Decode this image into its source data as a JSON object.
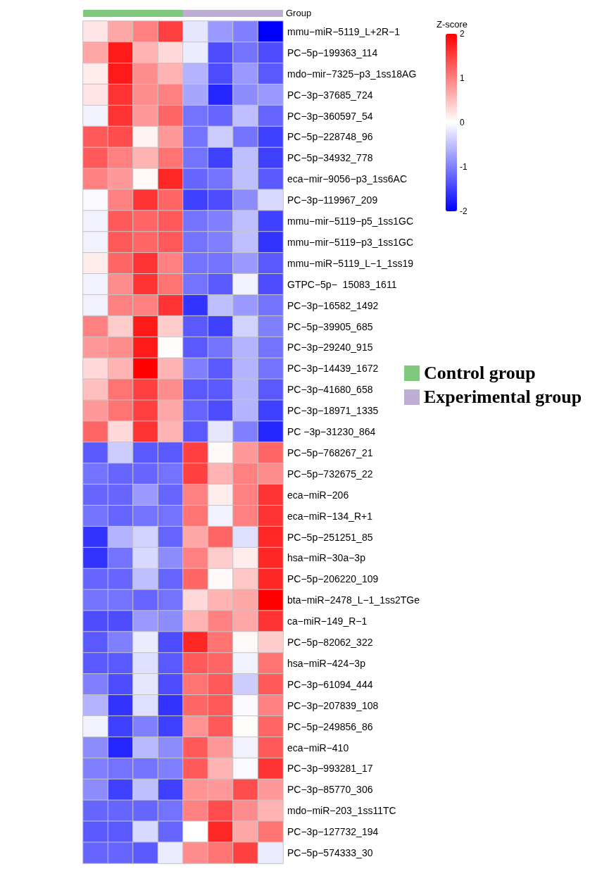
{
  "chart_data": {
    "type": "heatmap",
    "clabel": "Z-score",
    "clim": [
      -2,
      2
    ],
    "cticks": [
      -2,
      -1,
      0,
      1,
      2
    ],
    "annotations": [
      "Group",
      "Control group",
      "Experimental group"
    ],
    "categories": [
      null,
      null,
      null,
      null,
      null,
      null,
      null,
      null
    ],
    "y_categories": [
      "mmu−miR−5119_L+2R−1",
      "PC−5p−199363_114",
      "mdo−mir−7325−p3_1ss18AG",
      "PC−3p−37685_724",
      "PC−3p−360597_54",
      "PC−5p−228748_96",
      "PC−5p−34932_778",
      "eca−mir−9056−p3_1ss6AC",
      "PC−3p−119967_209",
      "mmu−mir−5119−p5_1ss1GC",
      "mmu−mir−5119−p3_1ss1GC",
      "mmu−miR−5119_L−1_1ss19",
      "GTPC−5p−  15083_1611",
      "PC−3p−16582_1492",
      "PC−5p−39905_685",
      "PC−3p−29240_915",
      "PC−3p−14439_1672",
      "PC−3p−41680_658",
      "PC−3p−18971_1335",
      "PC −3p−31230_864",
      "PC−5p−768267_21",
      "PC−5p−732675_22",
      "eca−miR−206",
      "eca−miR−134_R+1",
      "PC−5p−251251_85",
      "hsa−miR−30a−3p",
      "PC−5p−206220_109",
      "bta−miR−2478_L−1_1ss2TGe",
      "ca−miR−149_R−1",
      "PC−5p−82062_322",
      "hsa−miR−424−3p",
      "PC−3p−61094_444",
      "PC−3p−207839_108",
      "PC−5p−249856_86",
      "eca−miR−410",
      "PC−3p−993281_17",
      "PC−3p−85770_306",
      "mdo−miR−203_1ss11TC",
      "PC−3p−127732_194",
      "PC−5p−574333_30"
    ],
    "cells": [
      [
        0.2,
        0.7,
        1.0,
        1.5,
        -0.2,
        -0.8,
        -1.0,
        -2.0
      ],
      [
        0.7,
        1.8,
        0.6,
        0.3,
        -0.15,
        -1.4,
        -1.1,
        -1.4
      ],
      [
        0.15,
        1.8,
        0.9,
        0.6,
        -0.6,
        -1.4,
        -0.8,
        -1.3
      ],
      [
        0.2,
        1.6,
        0.9,
        1.0,
        -0.7,
        -1.7,
        -0.9,
        -0.8
      ],
      [
        -0.1,
        1.6,
        0.8,
        1.2,
        -1.1,
        -1.2,
        -0.5,
        -1.2
      ],
      [
        1.3,
        1.4,
        0.1,
        0.8,
        -1.1,
        -0.4,
        -1.1,
        -1.5
      ],
      [
        1.3,
        1.0,
        0.6,
        1.1,
        -1.1,
        -1.5,
        -0.5,
        -1.5
      ],
      [
        1.0,
        0.8,
        0.05,
        1.7,
        -1.2,
        -1.1,
        -0.5,
        -1.3
      ],
      [
        -0.05,
        1.0,
        1.6,
        1.2,
        -1.5,
        -1.4,
        -0.9,
        -0.3
      ],
      [
        -0.1,
        1.3,
        1.2,
        1.3,
        -1.1,
        -1.0,
        -0.5,
        -1.5
      ],
      [
        -0.1,
        1.3,
        1.2,
        1.3,
        -1.1,
        -1.0,
        -0.5,
        -1.6
      ],
      [
        0.15,
        1.2,
        1.6,
        1.0,
        -1.1,
        -1.1,
        -0.8,
        -1.3
      ],
      [
        -0.1,
        0.9,
        1.6,
        1.1,
        -1.1,
        -1.3,
        -0.1,
        -1.4
      ],
      [
        -0.1,
        1.0,
        1.0,
        1.6,
        -1.6,
        -0.5,
        -0.8,
        -1.1
      ],
      [
        1.0,
        0.4,
        1.8,
        0.4,
        -1.3,
        -1.5,
        -0.35,
        -1.0
      ],
      [
        0.8,
        0.9,
        1.8,
        0.02,
        -1.3,
        -1.1,
        -0.6,
        -1.1
      ],
      [
        0.3,
        0.6,
        2.0,
        0.6,
        -1.0,
        -1.3,
        -0.6,
        -1.1
      ],
      [
        0.5,
        1.1,
        1.5,
        0.9,
        -1.3,
        -1.3,
        -0.6,
        -1.3
      ],
      [
        0.8,
        1.1,
        1.5,
        0.7,
        -1.2,
        -1.4,
        -0.6,
        -1.5
      ],
      [
        1.2,
        0.3,
        1.6,
        0.6,
        -1.3,
        -0.2,
        -1.0,
        -1.7
      ],
      [
        -1.3,
        -0.4,
        -1.3,
        -1.3,
        1.5,
        0.05,
        0.8,
        1.2
      ],
      [
        -1.1,
        -1.2,
        -1.2,
        -1.1,
        1.5,
        0.6,
        1.0,
        0.9
      ],
      [
        -1.2,
        -1.2,
        -0.8,
        -1.2,
        1.0,
        0.15,
        1.0,
        1.6
      ],
      [
        -1.1,
        -1.2,
        -1.1,
        -1.1,
        1.1,
        -0.1,
        1.0,
        1.6
      ],
      [
        -1.6,
        -0.6,
        -0.35,
        -1.2,
        0.7,
        1.2,
        -0.25,
        1.7
      ],
      [
        -1.6,
        -1.1,
        -0.3,
        -0.9,
        1.0,
        0.4,
        0.15,
        1.7
      ],
      [
        -1.2,
        -1.2,
        -0.5,
        -1.2,
        1.2,
        0.05,
        0.45,
        1.7
      ],
      [
        -1.1,
        -1.1,
        -1.2,
        -1.1,
        0.3,
        0.6,
        0.7,
        2.0
      ],
      [
        -1.4,
        -1.4,
        -0.8,
        -0.9,
        0.6,
        1.0,
        0.7,
        1.6
      ],
      [
        -1.3,
        -1.0,
        -0.15,
        -1.4,
        1.7,
        1.1,
        0.05,
        0.4
      ],
      [
        -1.3,
        -1.3,
        -0.25,
        -1.3,
        1.3,
        1.2,
        -0.1,
        1.1
      ],
      [
        -1.0,
        -1.4,
        -0.2,
        -1.4,
        1.1,
        1.3,
        -0.4,
        1.3
      ],
      [
        -0.6,
        -1.6,
        -0.25,
        -1.6,
        1.2,
        1.3,
        -0.05,
        1.0
      ],
      [
        -0.1,
        -1.5,
        -1.0,
        -1.5,
        0.85,
        1.3,
        0.02,
        1.2
      ],
      [
        -0.9,
        -1.7,
        -0.55,
        -0.9,
        1.3,
        0.8,
        -0.1,
        1.3
      ],
      [
        -1.0,
        -1.1,
        -1.1,
        -1.0,
        1.3,
        0.6,
        -0.05,
        1.6
      ],
      [
        -0.9,
        -1.5,
        -0.5,
        -1.5,
        0.85,
        0.8,
        1.4,
        0.8
      ],
      [
        -1.2,
        -1.2,
        -1.2,
        -1.1,
        1.0,
        1.4,
        0.9,
        0.6
      ],
      [
        -1.3,
        -1.3,
        -0.3,
        -1.2,
        0.0,
        1.7,
        0.7,
        1.1
      ],
      [
        -1.2,
        -1.2,
        -1.3,
        -0.15,
        0.9,
        1.1,
        1.5,
        -0.15
      ]
    ]
  }
}
